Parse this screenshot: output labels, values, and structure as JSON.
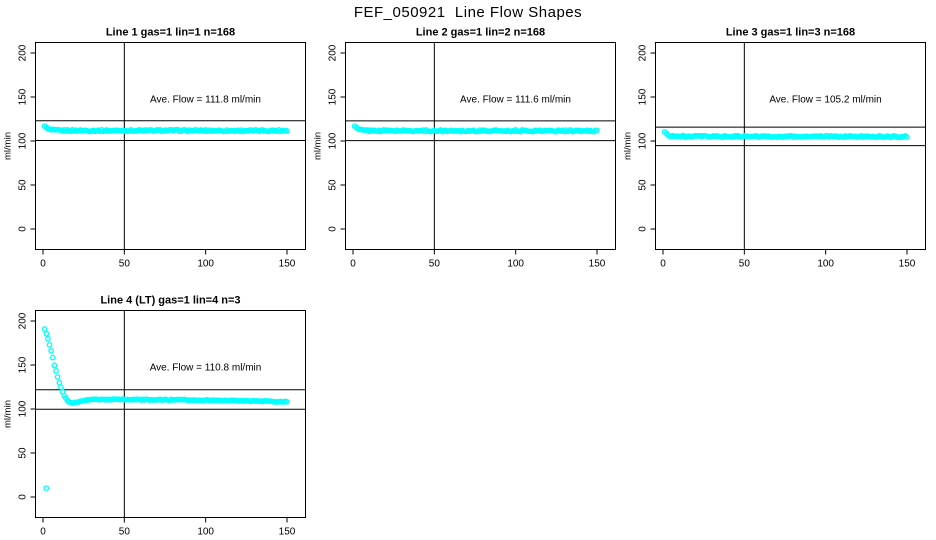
{
  "window": {
    "title": "FEF_050921  Line Flow Shapes"
  },
  "colors": {
    "background": "#FFFFFF",
    "foreground": "#000000",
    "points": "#00FFFF"
  },
  "chart_data": [
    {
      "type": "scatter",
      "title": "Line 1 gas=1 lin=1 n=168",
      "annotation": "Ave. Flow =  111.8  ml/min",
      "ave_flow_ml_min": 111.8,
      "n": 168,
      "xlabel": "",
      "ylabel": "ml/min",
      "xticks": [
        0,
        50,
        100,
        150
      ],
      "yticks": [
        0,
        50,
        100,
        150,
        200
      ],
      "xlim": [
        -5,
        161
      ],
      "ylim": [
        -24,
        212
      ],
      "vline_x": 50,
      "hlines": [
        123.0,
        100.6
      ],
      "x_range": [
        1,
        150
      ],
      "x_step": 1,
      "jitter": 0.9,
      "profile_keypoints": [
        [
          1,
          117.5
        ],
        [
          2,
          115.2
        ],
        [
          3,
          113.8
        ],
        [
          4,
          113
        ],
        [
          6,
          112.3
        ],
        [
          10,
          112
        ],
        [
          40,
          111.8
        ],
        [
          80,
          112
        ],
        [
          120,
          111.7
        ],
        [
          150,
          111.9
        ]
      ],
      "extra_points": []
    },
    {
      "type": "scatter",
      "title": "Line 2 gas=1 lin=2 n=168",
      "annotation": "Ave. Flow =  111.6  ml/min",
      "ave_flow_ml_min": 111.6,
      "n": 168,
      "xlabel": "",
      "ylabel": "ml/min",
      "xticks": [
        0,
        50,
        100,
        150
      ],
      "yticks": [
        0,
        50,
        100,
        150,
        200
      ],
      "xlim": [
        -5,
        161
      ],
      "ylim": [
        -24,
        212
      ],
      "vline_x": 50,
      "hlines": [
        122.8,
        100.4
      ],
      "x_range": [
        1,
        150
      ],
      "x_step": 1,
      "jitter": 0.9,
      "profile_keypoints": [
        [
          1,
          117
        ],
        [
          2,
          115
        ],
        [
          3,
          113.5
        ],
        [
          5,
          112.4
        ],
        [
          10,
          111.8
        ],
        [
          50,
          111.6
        ],
        [
          100,
          111.7
        ],
        [
          150,
          111.4
        ]
      ],
      "extra_points": []
    },
    {
      "type": "scatter",
      "title": "Line 3 gas=1 lin=3 n=168",
      "annotation": "Ave. Flow =  105.2  ml/min",
      "ave_flow_ml_min": 105.2,
      "n": 168,
      "xlabel": "",
      "ylabel": "ml/min",
      "xticks": [
        0,
        50,
        100,
        150
      ],
      "yticks": [
        0,
        50,
        100,
        150,
        200
      ],
      "xlim": [
        -5,
        161
      ],
      "ylim": [
        -24,
        212
      ],
      "vline_x": 50,
      "hlines": [
        115.7,
        94.7
      ],
      "x_range": [
        1,
        150
      ],
      "x_step": 1,
      "jitter": 0.9,
      "profile_keypoints": [
        [
          1,
          110.5
        ],
        [
          2,
          108.3
        ],
        [
          3,
          107
        ],
        [
          5,
          105.8
        ],
        [
          10,
          105.2
        ],
        [
          60,
          105.1
        ],
        [
          150,
          105
        ]
      ],
      "extra_points": []
    },
    {
      "type": "scatter",
      "title": "Line 4 (LT) gas=1 lin=4 n=3",
      "annotation": "Ave. Flow =  110.8  ml/min",
      "ave_flow_ml_min": 110.8,
      "n": 3,
      "xlabel": "",
      "ylabel": "ml/min",
      "xticks": [
        0,
        50,
        100,
        150
      ],
      "yticks": [
        0,
        50,
        100,
        150,
        200
      ],
      "xlim": [
        -5,
        161
      ],
      "ylim": [
        -24,
        212
      ],
      "vline_x": 50,
      "hlines": [
        121.9,
        99.7
      ],
      "x_range": [
        1,
        150
      ],
      "x_step": 1,
      "jitter": 0.5,
      "profile_keypoints": [
        [
          1,
          191
        ],
        [
          2,
          186
        ],
        [
          3,
          180
        ],
        [
          4,
          173
        ],
        [
          5,
          166
        ],
        [
          6,
          158
        ],
        [
          7,
          150
        ],
        [
          8,
          143
        ],
        [
          9,
          136
        ],
        [
          10,
          130
        ],
        [
          11,
          124.5
        ],
        [
          12,
          119.5
        ],
        [
          13,
          115.5
        ],
        [
          14,
          112
        ],
        [
          15,
          109.5
        ],
        [
          16,
          108
        ],
        [
          17,
          107
        ],
        [
          18,
          106.8
        ],
        [
          20,
          107.5
        ],
        [
          24,
          109.5
        ],
        [
          30,
          110.8
        ],
        [
          50,
          110.8
        ],
        [
          90,
          110.3
        ],
        [
          120,
          109.5
        ],
        [
          150,
          108.2
        ]
      ],
      "extra_points": [
        [
          2,
          10
        ]
      ]
    }
  ]
}
